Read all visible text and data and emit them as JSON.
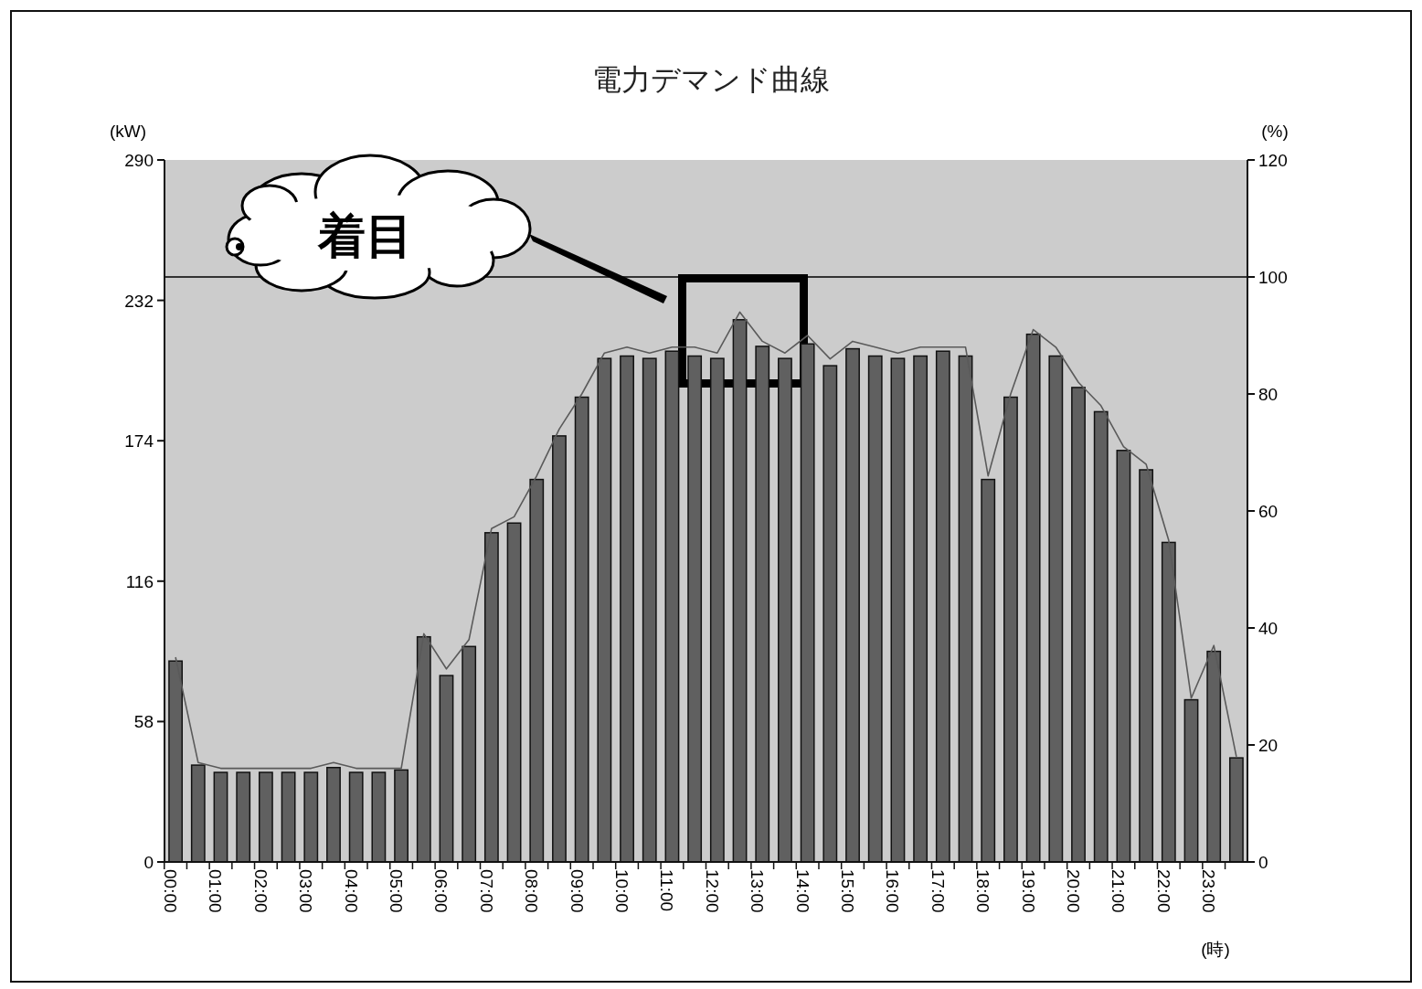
{
  "chart_data": {
    "type": "bar",
    "title": "電力デマンド曲線",
    "xlabel": "(時)",
    "ylabel": "(kW)",
    "y2label": "(%)",
    "categories": [
      "00:00",
      null,
      "01:00",
      null,
      "02:00",
      null,
      "03:00",
      null,
      "04:00",
      null,
      "05:00",
      null,
      "06:00",
      null,
      "07:00",
      null,
      "08:00",
      null,
      "09:00",
      null,
      "10:00",
      null,
      "11:00",
      null,
      "12:00",
      null,
      "13:00",
      null,
      "14:00",
      null,
      "15:00",
      null,
      "16:00",
      null,
      "17:00",
      null,
      "18:00",
      null,
      "19:00",
      null,
      "20:00",
      null,
      "21:00",
      null,
      "22:00",
      null,
      "23:00",
      null
    ],
    "series": [
      {
        "color": "#606060",
        "values": [
          83,
          40,
          37,
          37,
          37,
          37,
          37,
          39,
          37,
          37,
          38,
          93,
          77,
          89,
          136,
          140,
          158,
          176,
          192,
          208,
          209,
          208,
          211,
          209,
          208,
          224,
          213,
          208,
          214,
          205,
          212,
          209,
          208,
          209,
          211,
          209,
          158,
          192,
          218,
          209,
          196,
          186,
          170,
          162,
          132,
          67,
          87,
          43
        ]
      },
      {
        "type": "line",
        "axis": "y2",
        "color": "#5a5a5a",
        "values": [
          35,
          17,
          16,
          16,
          16,
          16,
          16,
          17,
          16,
          16,
          16,
          39,
          33,
          38,
          57,
          59,
          66,
          74,
          80,
          87,
          88,
          87,
          88,
          88,
          87,
          94,
          89,
          87,
          90,
          86,
          89,
          88,
          87,
          88,
          88,
          88,
          66,
          80,
          91,
          88,
          82,
          78,
          71,
          68,
          55,
          28,
          37,
          18
        ]
      }
    ],
    "ylim": [
      0,
      290
    ],
    "yticks": [
      0,
      58,
      116,
      174,
      232,
      290
    ],
    "y2lim": [
      0,
      120
    ],
    "y2ticks": [
      0,
      20,
      40,
      60,
      80,
      100,
      120
    ],
    "ref_lines": [
      {
        "axis": "y2",
        "value": 100,
        "color": "#333333"
      }
    ],
    "annotations": [
      "着目"
    ],
    "grid": false,
    "marker": "none",
    "line_style": "solid"
  }
}
